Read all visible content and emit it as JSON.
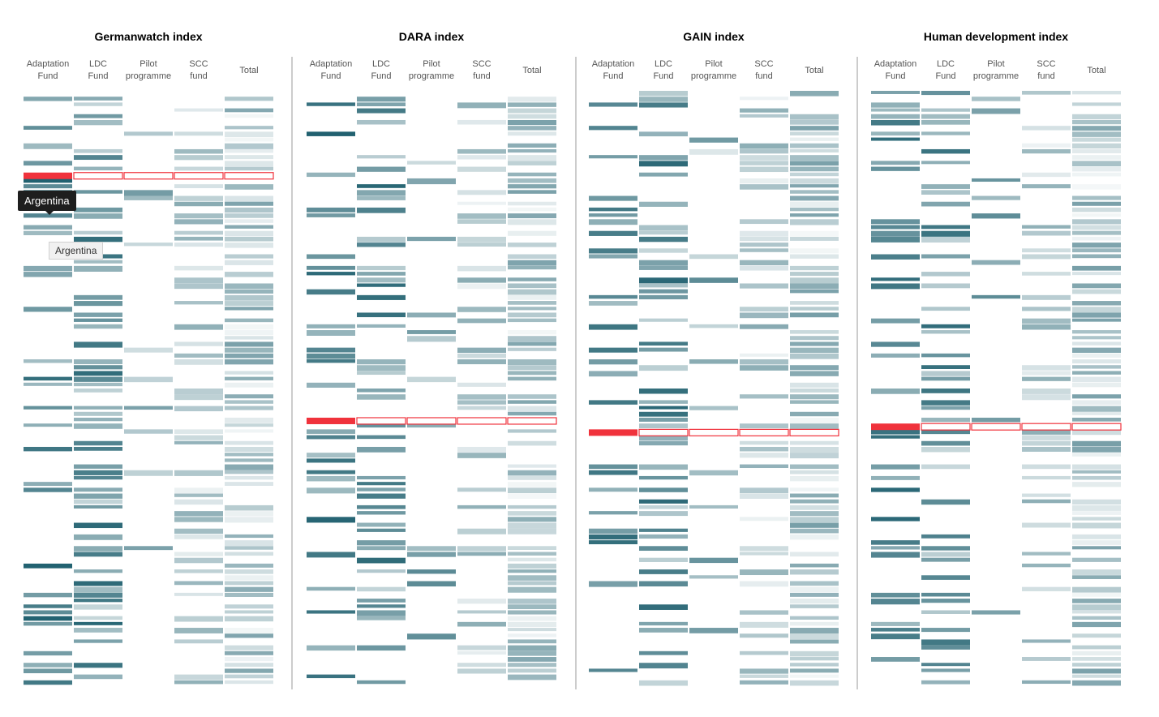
{
  "tooltip": {
    "country": "Argentina"
  },
  "highlight_color": "#f0323c",
  "cell_color": "#1e5f6e",
  "chart_data": {
    "type": "heatmap",
    "column_labels": [
      "Adaptation Fund",
      "LDC Fund",
      "Pilot programme",
      "SCC fund",
      "Total"
    ],
    "highlight_row": "Argentina",
    "panels": [
      {
        "title": "Germanwatch index",
        "highlight_index": 14
      },
      {
        "title": "DARA index",
        "highlight_index": 56
      },
      {
        "title": "GAIN index",
        "highlight_index": 58
      },
      {
        "title": "Human development index",
        "highlight_index": 57
      }
    ]
  }
}
